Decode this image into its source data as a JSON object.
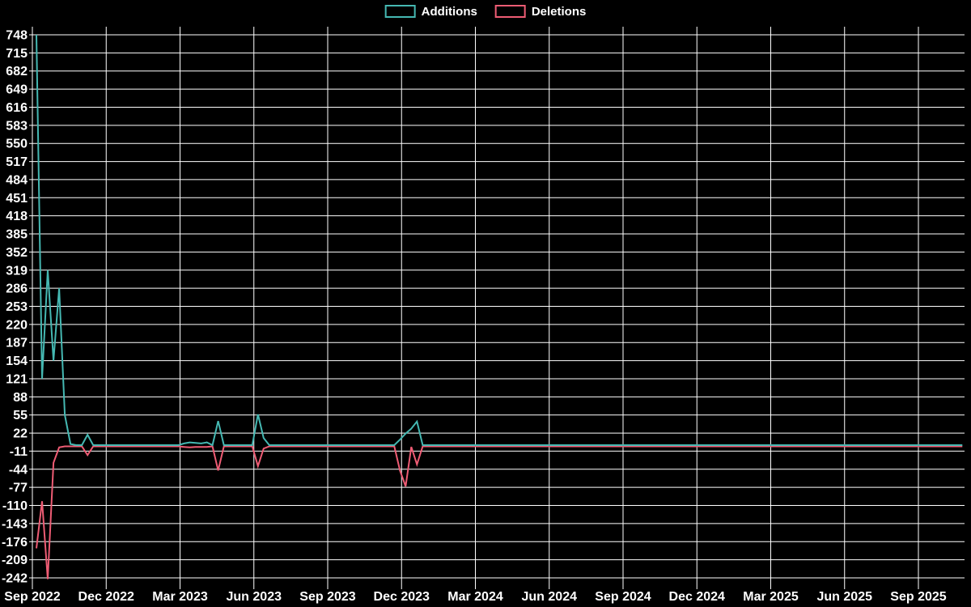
{
  "chart_data": {
    "type": "line",
    "background_color": "#000000",
    "grid_color": "#ffffff",
    "text_color": "#ffffff",
    "legend_position": "top-center",
    "grid": true,
    "legend": [
      {
        "label": "Additions",
        "color": "#45b8b2"
      },
      {
        "label": "Deletions",
        "color": "#ee5c74"
      }
    ],
    "ylim": [
      -242,
      748
    ],
    "y_tick_step": 33,
    "y_ticks": [
      748,
      715,
      682,
      649,
      616,
      583,
      550,
      517,
      484,
      451,
      418,
      385,
      352,
      319,
      286,
      253,
      220,
      187,
      154,
      121,
      88,
      55,
      22,
      -11,
      -44,
      -77,
      -110,
      -143,
      -176,
      -209,
      -242
    ],
    "x_ticks": [
      "Sep 2022",
      "Dec 2022",
      "Mar 2023",
      "Jun 2023",
      "Sep 2023",
      "Dec 2023",
      "Mar 2024",
      "Jun 2024",
      "Sep 2024",
      "Dec 2024",
      "Mar 2025",
      "Jun 2025",
      "Sep 2025"
    ],
    "x_unit": "week",
    "weeks_total": 164,
    "series": [
      {
        "name": "Additions",
        "color": "#45b8b2",
        "default_value": 0,
        "points": {
          "0": 748,
          "1": 121,
          "2": 319,
          "3": 154,
          "4": 286,
          "5": 55,
          "6": 2,
          "9": 19,
          "26": 3,
          "27": 5,
          "28": 4,
          "29": 3,
          "30": 5,
          "32": 44,
          "39": 56,
          "40": 13,
          "64": 10,
          "65": 21,
          "66": 30,
          "67": 43
        }
      },
      {
        "name": "Deletions",
        "color": "#ee5c74",
        "default_value": 0,
        "points": {
          "0": -186,
          "1": -100,
          "2": -242,
          "3": -30,
          "4": -2,
          "9": -16,
          "26": -1,
          "27": -2,
          "28": -1,
          "29": -1,
          "30": -1,
          "32": -44,
          "39": -36,
          "40": -4,
          "64": -44,
          "65": -73,
          "66": -1,
          "67": -33
        }
      }
    ]
  }
}
